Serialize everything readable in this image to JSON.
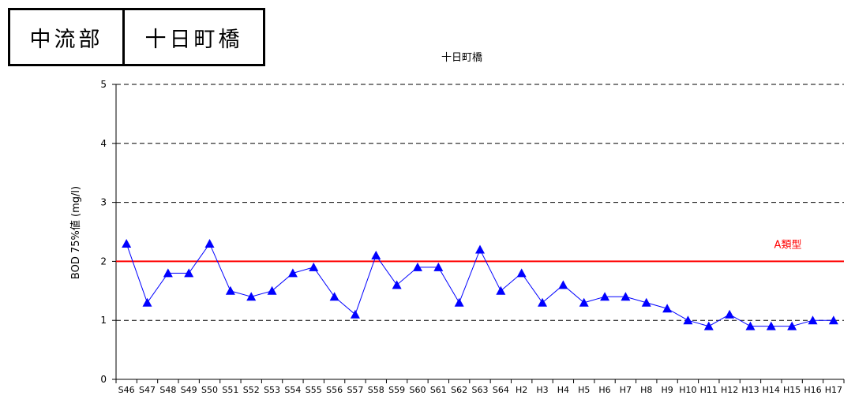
{
  "header": {
    "region": "中流部",
    "station": "十日町橋"
  },
  "chart_data": {
    "type": "line",
    "title": "十日町橋",
    "ylabel": "BOD 75%値 (mg/l)",
    "xlabel": "",
    "ylim": [
      0,
      5
    ],
    "yticks": [
      0,
      1,
      2,
      3,
      4,
      5
    ],
    "grid": "horizontal dashed",
    "categories": [
      "S46",
      "S47",
      "S48",
      "S49",
      "S50",
      "S51",
      "S52",
      "S53",
      "S54",
      "S55",
      "S56",
      "S57",
      "S58",
      "S59",
      "S60",
      "S61",
      "S62",
      "S63",
      "S64",
      "H2",
      "H3",
      "H4",
      "H5",
      "H6",
      "H7",
      "H8",
      "H9",
      "H10",
      "H11",
      "H12",
      "H13",
      "H14",
      "H15",
      "H16",
      "H17"
    ],
    "series": [
      {
        "values": [
          2.3,
          1.3,
          1.8,
          1.8,
          2.3,
          1.5,
          1.4,
          1.5,
          1.8,
          1.9,
          1.4,
          1.1,
          2.1,
          1.6,
          1.9,
          1.9,
          1.3,
          2.2,
          1.5,
          1.8,
          1.3,
          1.6,
          1.3,
          1.4,
          1.4,
          1.3,
          1.2,
          1.0,
          0.9,
          1.1,
          0.9,
          0.9,
          0.9,
          1.0,
          1.0
        ],
        "color": "#0000ff",
        "marker": "triangle"
      }
    ],
    "reference_line": {
      "label": "A類型",
      "value": 2,
      "color": "#ff0000"
    }
  }
}
